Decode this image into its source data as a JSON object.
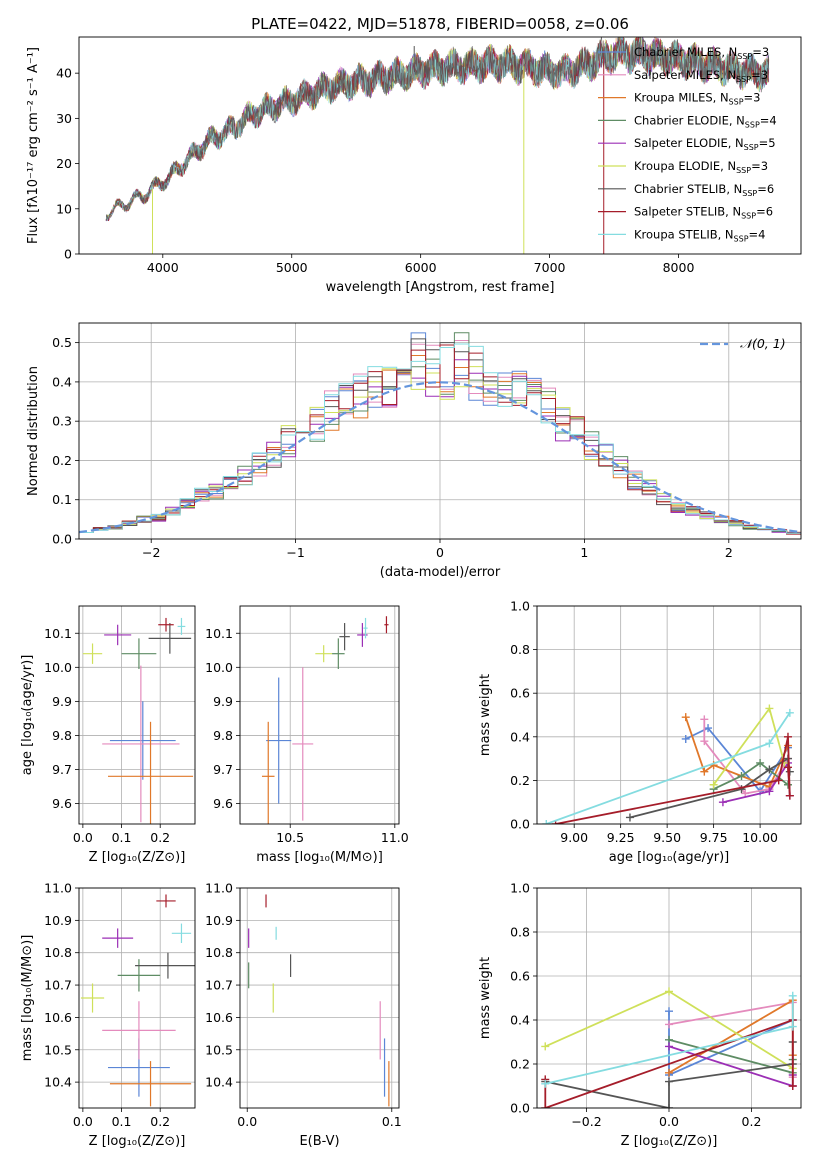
{
  "figure_title": "PLATE=0422, MJD=51878, FIBERID=0058, z=0.06",
  "colors": {
    "chabrier_miles": "#5b86d6",
    "salpeter_miles": "#e48bbd",
    "kroupa_miles": "#e0782a",
    "chabrier_elodie": "#5e8c64",
    "salpeter_elodie": "#9b2fb5",
    "kroupa_elodie": "#cfe05a",
    "chabrier_stelib": "#555555",
    "salpeter_stelib": "#a51d2a",
    "kroupa_stelib": "#84dce0",
    "normal_curve": "#6495dd",
    "grid": "#b0b0b0"
  },
  "chart_data": [
    {
      "id": "spectrum",
      "type": "line",
      "title": "PLATE=0422, MJD=51878, FIBERID=0058, z=0.06",
      "xlabel": "wavelength [Angstrom, rest frame]",
      "ylabel": "Flux [fλ10⁻¹⁷ erg cm⁻² s⁻¹ A⁻¹]",
      "xlim": [
        3350,
        8950
      ],
      "ylim": [
        0,
        48
      ],
      "xticks": [
        4000,
        5000,
        6000,
        7000,
        8000
      ],
      "yticks": [
        0,
        10,
        20,
        30,
        40
      ],
      "grid": false,
      "legend_position": "right",
      "continuum": [
        [
          3560,
          9
        ],
        [
          3700,
          11
        ],
        [
          3850,
          13
        ],
        [
          3950,
          15
        ],
        [
          4050,
          17
        ],
        [
          4200,
          21
        ],
        [
          4350,
          25
        ],
        [
          4500,
          27
        ],
        [
          4700,
          31
        ],
        [
          4900,
          33
        ],
        [
          5100,
          35
        ],
        [
          5300,
          37
        ],
        [
          5500,
          38
        ],
        [
          5700,
          39
        ],
        [
          5900,
          40
        ],
        [
          6100,
          41
        ],
        [
          6300,
          41.5
        ],
        [
          6500,
          42
        ],
        [
          6700,
          42
        ],
        [
          6900,
          41
        ],
        [
          7100,
          40
        ],
        [
          7300,
          42
        ],
        [
          7450,
          44
        ],
        [
          7600,
          44.5
        ],
        [
          7800,
          44
        ],
        [
          8000,
          43
        ],
        [
          8200,
          42
        ],
        [
          8400,
          41
        ],
        [
          8600,
          40
        ],
        [
          8700,
          40
        ]
      ],
      "spikes": [
        [
          3920,
          0,
          "kroupa_elodie"
        ],
        [
          5950,
          46,
          "chabrier_stelib"
        ],
        [
          6800,
          0,
          "kroupa_elodie"
        ],
        [
          7420,
          0,
          "salpeter_stelib"
        ]
      ],
      "series_labels": [
        {
          "key": "chabrier_miles",
          "label": "Chabrier MILES, N",
          "nssp": "3"
        },
        {
          "key": "salpeter_miles",
          "label": "Salpeter MILES, N",
          "nssp": "3"
        },
        {
          "key": "kroupa_miles",
          "label": "Kroupa MILES, N",
          "nssp": "3"
        },
        {
          "key": "chabrier_elodie",
          "label": "Chabrier ELODIE, N",
          "nssp": "4"
        },
        {
          "key": "salpeter_elodie",
          "label": "Salpeter ELODIE, N",
          "nssp": "5"
        },
        {
          "key": "kroupa_elodie",
          "label": "Kroupa ELODIE, N",
          "nssp": "3"
        },
        {
          "key": "chabrier_stelib",
          "label": "Chabrier STELIB, N",
          "nssp": "6"
        },
        {
          "key": "salpeter_stelib",
          "label": "Salpeter STELIB, N",
          "nssp": "6"
        },
        {
          "key": "kroupa_stelib",
          "label": "Kroupa STELIB, N",
          "nssp": "4"
        }
      ],
      "nssp_subscript": "SSP"
    },
    {
      "id": "residual_hist",
      "type": "area",
      "xlabel": "(data-model)/error",
      "ylabel": "Normed distribution",
      "xlim": [
        -2.5,
        2.5
      ],
      "ylim": [
        0,
        0.55
      ],
      "xticks": [
        -2,
        -1,
        0,
        1,
        2
      ],
      "yticks": [
        0.0,
        0.1,
        0.2,
        0.3,
        0.4,
        0.5
      ],
      "grid": true,
      "legend_position": "top-right",
      "legend_label": "𝒩(0, 1)",
      "bin_width": 0.1,
      "bin_start": -2.5,
      "base_heights": [
        0.02,
        0.025,
        0.03,
        0.04,
        0.05,
        0.055,
        0.07,
        0.09,
        0.11,
        0.12,
        0.14,
        0.16,
        0.19,
        0.22,
        0.25,
        0.27,
        0.3,
        0.33,
        0.35,
        0.37,
        0.38,
        0.4,
        0.42,
        0.45,
        0.44,
        0.43,
        0.45,
        0.42,
        0.41,
        0.38,
        0.37,
        0.35,
        0.33,
        0.3,
        0.27,
        0.24,
        0.21,
        0.18,
        0.15,
        0.13,
        0.1,
        0.08,
        0.07,
        0.06,
        0.05,
        0.04,
        0.03,
        0.025,
        0.02,
        0.015
      ]
    },
    {
      "id": "age_vs_Z",
      "type": "scatter",
      "xlabel": "Z [log₁₀(Z/Z⊙)]",
      "ylabel": "age  [log₁₀(age/yr)]",
      "xlim": [
        -0.01,
        0.29
      ],
      "ylim": [
        9.54,
        10.18
      ],
      "xticks": [
        0.0,
        0.1,
        0.2
      ],
      "yticks": [
        9.6,
        9.7,
        9.8,
        9.9,
        10.0,
        10.1
      ],
      "grid": true,
      "points": [
        {
          "key": "chabrier_miles",
          "x": 0.155,
          "y": 9.785,
          "ex": 0.085,
          "ey": 0.115
        },
        {
          "key": "salpeter_miles",
          "x": 0.15,
          "y": 9.775,
          "ex": 0.1,
          "ey": 0.23
        },
        {
          "key": "kroupa_miles",
          "x": 0.175,
          "y": 9.68,
          "ex": 0.11,
          "ey": 0.16
        },
        {
          "key": "chabrier_elodie",
          "x": 0.145,
          "y": 10.04,
          "ex": 0.045,
          "ey": 0.045
        },
        {
          "key": "salpeter_elodie",
          "x": 0.09,
          "y": 10.095,
          "ex": 0.035,
          "ey": 0.03
        },
        {
          "key": "kroupa_elodie",
          "x": 0.025,
          "y": 10.04,
          "ex": 0.025,
          "ey": 0.03
        },
        {
          "key": "chabrier_stelib",
          "x": 0.225,
          "y": 10.085,
          "ex": 0.055,
          "ey": 0.045
        },
        {
          "key": "salpeter_stelib",
          "x": 0.215,
          "y": 10.125,
          "ex": 0.02,
          "ey": 0.02
        },
        {
          "key": "kroupa_stelib",
          "x": 0.255,
          "y": 10.12,
          "ex": 0.01,
          "ey": 0.025
        }
      ]
    },
    {
      "id": "age_vs_mass",
      "type": "scatter",
      "xlabel": "mass [log₁₀(M/M⊙)]",
      "ylabel": "",
      "xlim": [
        10.26,
        11.02
      ],
      "ylim": [
        9.54,
        10.18
      ],
      "xticks": [
        10.5,
        11.0
      ],
      "yticks": [
        9.6,
        9.7,
        9.8,
        9.9,
        10.0,
        10.1
      ],
      "grid": true,
      "points": [
        {
          "key": "chabrier_miles",
          "x": 10.445,
          "y": 9.785,
          "ex": 0.06,
          "ey": 0.185
        },
        {
          "key": "salpeter_miles",
          "x": 10.56,
          "y": 9.775,
          "ex": 0.05,
          "ey": 0.225
        },
        {
          "key": "kroupa_miles",
          "x": 10.395,
          "y": 9.68,
          "ex": 0.03,
          "ey": 0.16
        },
        {
          "key": "chabrier_elodie",
          "x": 10.73,
          "y": 10.04,
          "ex": 0.03,
          "ey": 0.045
        },
        {
          "key": "salpeter_elodie",
          "x": 10.845,
          "y": 10.095,
          "ex": 0.025,
          "ey": 0.035
        },
        {
          "key": "kroupa_elodie",
          "x": 10.66,
          "y": 10.04,
          "ex": 0.04,
          "ey": 0.025
        },
        {
          "key": "chabrier_stelib",
          "x": 10.76,
          "y": 10.09,
          "ex": 0.025,
          "ey": 0.04
        },
        {
          "key": "salpeter_stelib",
          "x": 10.96,
          "y": 10.125,
          "ex": 0.01,
          "ey": 0.025
        },
        {
          "key": "kroupa_stelib",
          "x": 10.86,
          "y": 10.115,
          "ex": 0.01,
          "ey": 0.03
        }
      ]
    },
    {
      "id": "mass_weight_vs_age",
      "type": "line",
      "xlabel": "age  [log₁₀(age/yr)]",
      "ylabel": "mass weight",
      "xlim": [
        8.8,
        10.22
      ],
      "ylim": [
        0.0,
        1.0
      ],
      "xticks": [
        9.0,
        9.25,
        9.5,
        9.75,
        10.0
      ],
      "xticklabels": [
        "9.00",
        "9.25",
        "9.50",
        "9.75",
        "10.00"
      ],
      "yticks": [
        0.0,
        0.2,
        0.4,
        0.6,
        0.8,
        1.0
      ],
      "grid": true,
      "series": [
        {
          "key": "chabrier_miles",
          "x": [
            9.6,
            9.72,
            10.0,
            10.15
          ],
          "y": [
            0.39,
            0.44,
            0.15,
            0.35
          ]
        },
        {
          "key": "salpeter_miles",
          "x": [
            9.7,
            9.7,
            9.92,
            10.05,
            10.15
          ],
          "y": [
            0.48,
            0.38,
            0.14,
            0.16,
            0.3
          ]
        },
        {
          "key": "kroupa_miles",
          "x": [
            9.6,
            9.7,
            9.75,
            10.05,
            10.15
          ],
          "y": [
            0.49,
            0.24,
            0.27,
            0.17,
            0.36
          ]
        },
        {
          "key": "chabrier_elodie",
          "x": [
            9.75,
            9.9,
            10.0,
            10.15
          ],
          "y": [
            0.16,
            0.22,
            0.28,
            0.18
          ]
        },
        {
          "key": "salpeter_elodie",
          "x": [
            9.8,
            10.05,
            10.15,
            10.16
          ],
          "y": [
            0.1,
            0.15,
            0.28,
            0.13
          ]
        },
        {
          "key": "kroupa_elodie",
          "x": [
            9.75,
            10.05,
            10.13
          ],
          "y": [
            0.18,
            0.53,
            0.28
          ]
        },
        {
          "key": "chabrier_stelib",
          "x": [
            9.3,
            9.9,
            10.05,
            10.15,
            10.16
          ],
          "y": [
            0.03,
            0.16,
            0.25,
            0.3,
            0.24
          ]
        },
        {
          "key": "salpeter_stelib",
          "x": [
            8.9,
            10.1,
            10.15,
            10.16,
            10.15
          ],
          "y": [
            0.0,
            0.2,
            0.4,
            0.13,
            0.26
          ]
        },
        {
          "key": "kroupa_stelib",
          "x": [
            8.85,
            10.05,
            10.16
          ],
          "y": [
            0.0,
            0.37,
            0.51
          ]
        }
      ]
    },
    {
      "id": "mass_vs_Z",
      "type": "scatter",
      "xlabel": "Z [log₁₀(Z/Z⊙)]",
      "ylabel": "mass [log₁₀(M/M⊙)]",
      "xlim": [
        -0.01,
        0.29
      ],
      "ylim": [
        10.32,
        11.0
      ],
      "xticks": [
        0.0,
        0.1,
        0.2
      ],
      "yticks": [
        10.4,
        10.5,
        10.6,
        10.7,
        10.8,
        10.9,
        11.0
      ],
      "grid": true,
      "points": [
        {
          "key": "chabrier_miles",
          "x": 0.145,
          "y": 10.445,
          "ex": 0.08,
          "ey": 0.09
        },
        {
          "key": "salpeter_miles",
          "x": 0.145,
          "y": 10.56,
          "ex": 0.095,
          "ey": 0.09
        },
        {
          "key": "kroupa_miles",
          "x": 0.175,
          "y": 10.395,
          "ex": 0.105,
          "ey": 0.07
        },
        {
          "key": "chabrier_elodie",
          "x": 0.145,
          "y": 10.73,
          "ex": 0.055,
          "ey": 0.05
        },
        {
          "key": "salpeter_elodie",
          "x": 0.09,
          "y": 10.845,
          "ex": 0.04,
          "ey": 0.03
        },
        {
          "key": "kroupa_elodie",
          "x": 0.025,
          "y": 10.66,
          "ex": 0.03,
          "ey": 0.045
        },
        {
          "key": "chabrier_stelib",
          "x": 0.22,
          "y": 10.76,
          "ex": 0.085,
          "ey": 0.04
        },
        {
          "key": "salpeter_stelib",
          "x": 0.215,
          "y": 10.96,
          "ex": 0.025,
          "ey": 0.02
        },
        {
          "key": "kroupa_stelib",
          "x": 0.255,
          "y": 10.86,
          "ex": 0.025,
          "ey": 0.03
        }
      ]
    },
    {
      "id": "mass_vs_ebv",
      "type": "scatter",
      "xlabel": "E(B-V)",
      "ylabel": "",
      "xlim": [
        -0.005,
        0.105
      ],
      "ylim": [
        10.32,
        11.0
      ],
      "xticks": [
        0.0,
        0.1
      ],
      "yticks": [
        10.4,
        10.5,
        10.6,
        10.7,
        10.8,
        10.9,
        11.0
      ],
      "grid": true,
      "points": [
        {
          "key": "chabrier_miles",
          "x": 0.095,
          "y": 10.445,
          "ex": 0,
          "ey": 0.09
        },
        {
          "key": "salpeter_miles",
          "x": 0.092,
          "y": 10.56,
          "ex": 0,
          "ey": 0.09
        },
        {
          "key": "kroupa_miles",
          "x": 0.098,
          "y": 10.395,
          "ex": 0,
          "ey": 0.07
        },
        {
          "key": "chabrier_elodie",
          "x": 0.001,
          "y": 10.73,
          "ex": 0,
          "ey": 0.04
        },
        {
          "key": "salpeter_elodie",
          "x": 0.001,
          "y": 10.845,
          "ex": 0,
          "ey": 0.03
        },
        {
          "key": "kroupa_elodie",
          "x": 0.018,
          "y": 10.66,
          "ex": 0,
          "ey": 0.045
        },
        {
          "key": "chabrier_stelib",
          "x": 0.03,
          "y": 10.76,
          "ex": 0,
          "ey": 0.035
        },
        {
          "key": "salpeter_stelib",
          "x": 0.013,
          "y": 10.96,
          "ex": 0,
          "ey": 0.02
        },
        {
          "key": "kroupa_stelib",
          "x": 0.02,
          "y": 10.86,
          "ex": 0,
          "ey": 0.02
        }
      ]
    },
    {
      "id": "mass_weight_vs_Z",
      "type": "line",
      "xlabel": "Z [log₁₀(Z/Z⊙)]",
      "ylabel": "mass weight",
      "xlim": [
        -0.32,
        0.32
      ],
      "ylim": [
        0.0,
        1.0
      ],
      "xticks": [
        -0.2,
        0.0,
        0.2
      ],
      "yticks": [
        0.0,
        0.2,
        0.4,
        0.6,
        0.8,
        1.0
      ],
      "grid": true,
      "series": [
        {
          "key": "chabrier_miles",
          "x": [
            0.0,
            0.0,
            0.3
          ],
          "y": [
            0.44,
            0.15,
            0.4
          ]
        },
        {
          "key": "salpeter_miles",
          "x": [
            0.0,
            0.3,
            0.3
          ],
          "y": [
            0.38,
            0.48,
            0.14
          ]
        },
        {
          "key": "kroupa_miles",
          "x": [
            0.0,
            0.3,
            0.3
          ],
          "y": [
            0.16,
            0.49,
            0.24
          ]
        },
        {
          "key": "chabrier_elodie",
          "x": [
            0.0,
            0.3,
            0.3
          ],
          "y": [
            0.31,
            0.16,
            0.22
          ]
        },
        {
          "key": "salpeter_elodie",
          "x": [
            0.0,
            0.3,
            0.3
          ],
          "y": [
            0.28,
            0.1,
            0.15
          ]
        },
        {
          "key": "kroupa_elodie",
          "x": [
            -0.3,
            0.0,
            0.3
          ],
          "y": [
            0.28,
            0.53,
            0.18
          ]
        },
        {
          "key": "chabrier_stelib",
          "x": [
            -0.3,
            0.0,
            0.0,
            0.3,
            0.3
          ],
          "y": [
            0.12,
            0.0,
            0.12,
            0.2,
            0.3
          ]
        },
        {
          "key": "salpeter_stelib",
          "x": [
            -0.3,
            -0.3,
            0.3,
            0.3
          ],
          "y": [
            0.13,
            0.0,
            0.4,
            0.1
          ]
        },
        {
          "key": "kroupa_stelib",
          "x": [
            -0.3,
            0.3,
            0.3
          ],
          "y": [
            0.11,
            0.37,
            0.51
          ]
        }
      ]
    }
  ]
}
